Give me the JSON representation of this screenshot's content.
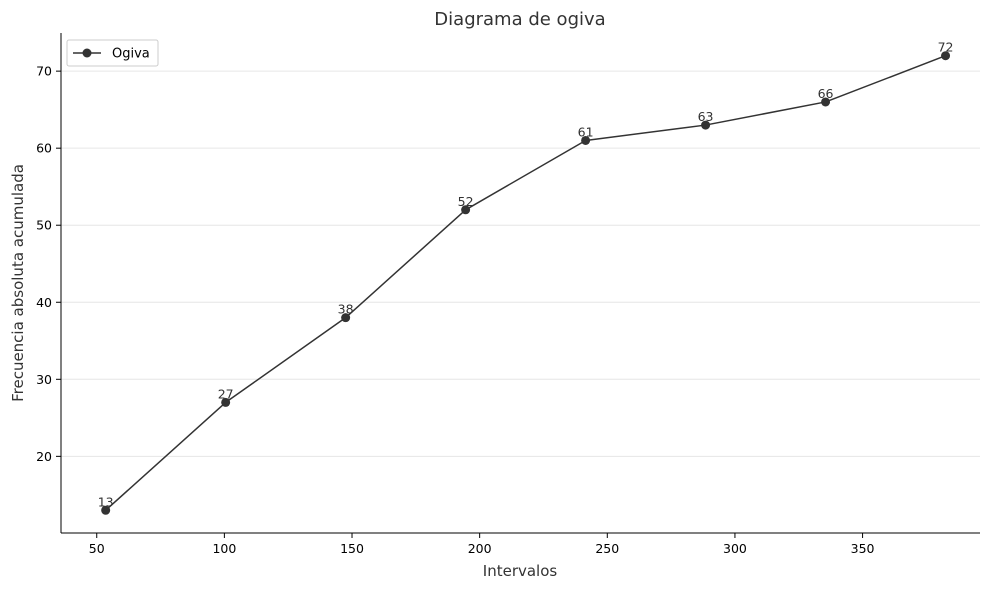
{
  "chart_data": {
    "type": "line",
    "title": "Diagrama de ogiva",
    "xlabel": "Intervalos",
    "ylabel": "Frecuencia absoluta acumulada",
    "xlim": [
      36,
      396
    ],
    "ylim": [
      10.05,
      74.95
    ],
    "x_ticks": [
      50,
      100,
      150,
      200,
      250,
      300,
      350
    ],
    "y_ticks": [
      20,
      30,
      40,
      50,
      60,
      70
    ],
    "grid": "horizontal",
    "legend_position": "top-left",
    "series": [
      {
        "name": "Ogiva",
        "color": "#333333",
        "marker": "circle",
        "x": [
          53.5,
          100.5,
          147.5,
          194.5,
          241.5,
          288.5,
          335.5,
          382.5
        ],
        "values": [
          13,
          27,
          38,
          52,
          61,
          63,
          66,
          72
        ]
      }
    ]
  }
}
